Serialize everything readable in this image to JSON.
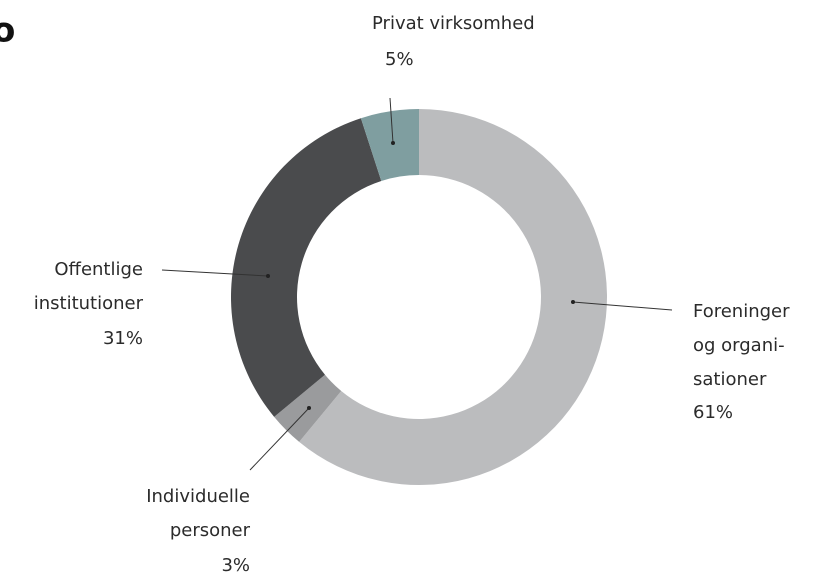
{
  "chart_data": {
    "type": "donut",
    "title": "o",
    "categories": [
      [
        "Foreninger",
        "og organi-",
        "sationer"
      ],
      [
        "Individuelle",
        "personer"
      ],
      [
        "Offentlige",
        "institutioner"
      ],
      [
        "Privat virksomhed"
      ]
    ],
    "values": [
      61,
      3,
      31,
      5
    ],
    "value_labels": [
      "61%",
      "3%",
      "31%",
      "5%"
    ],
    "colors": [
      "#bbbcbe",
      "#9a9b9d",
      "#4a4b4d",
      "#7f9ea0"
    ]
  }
}
